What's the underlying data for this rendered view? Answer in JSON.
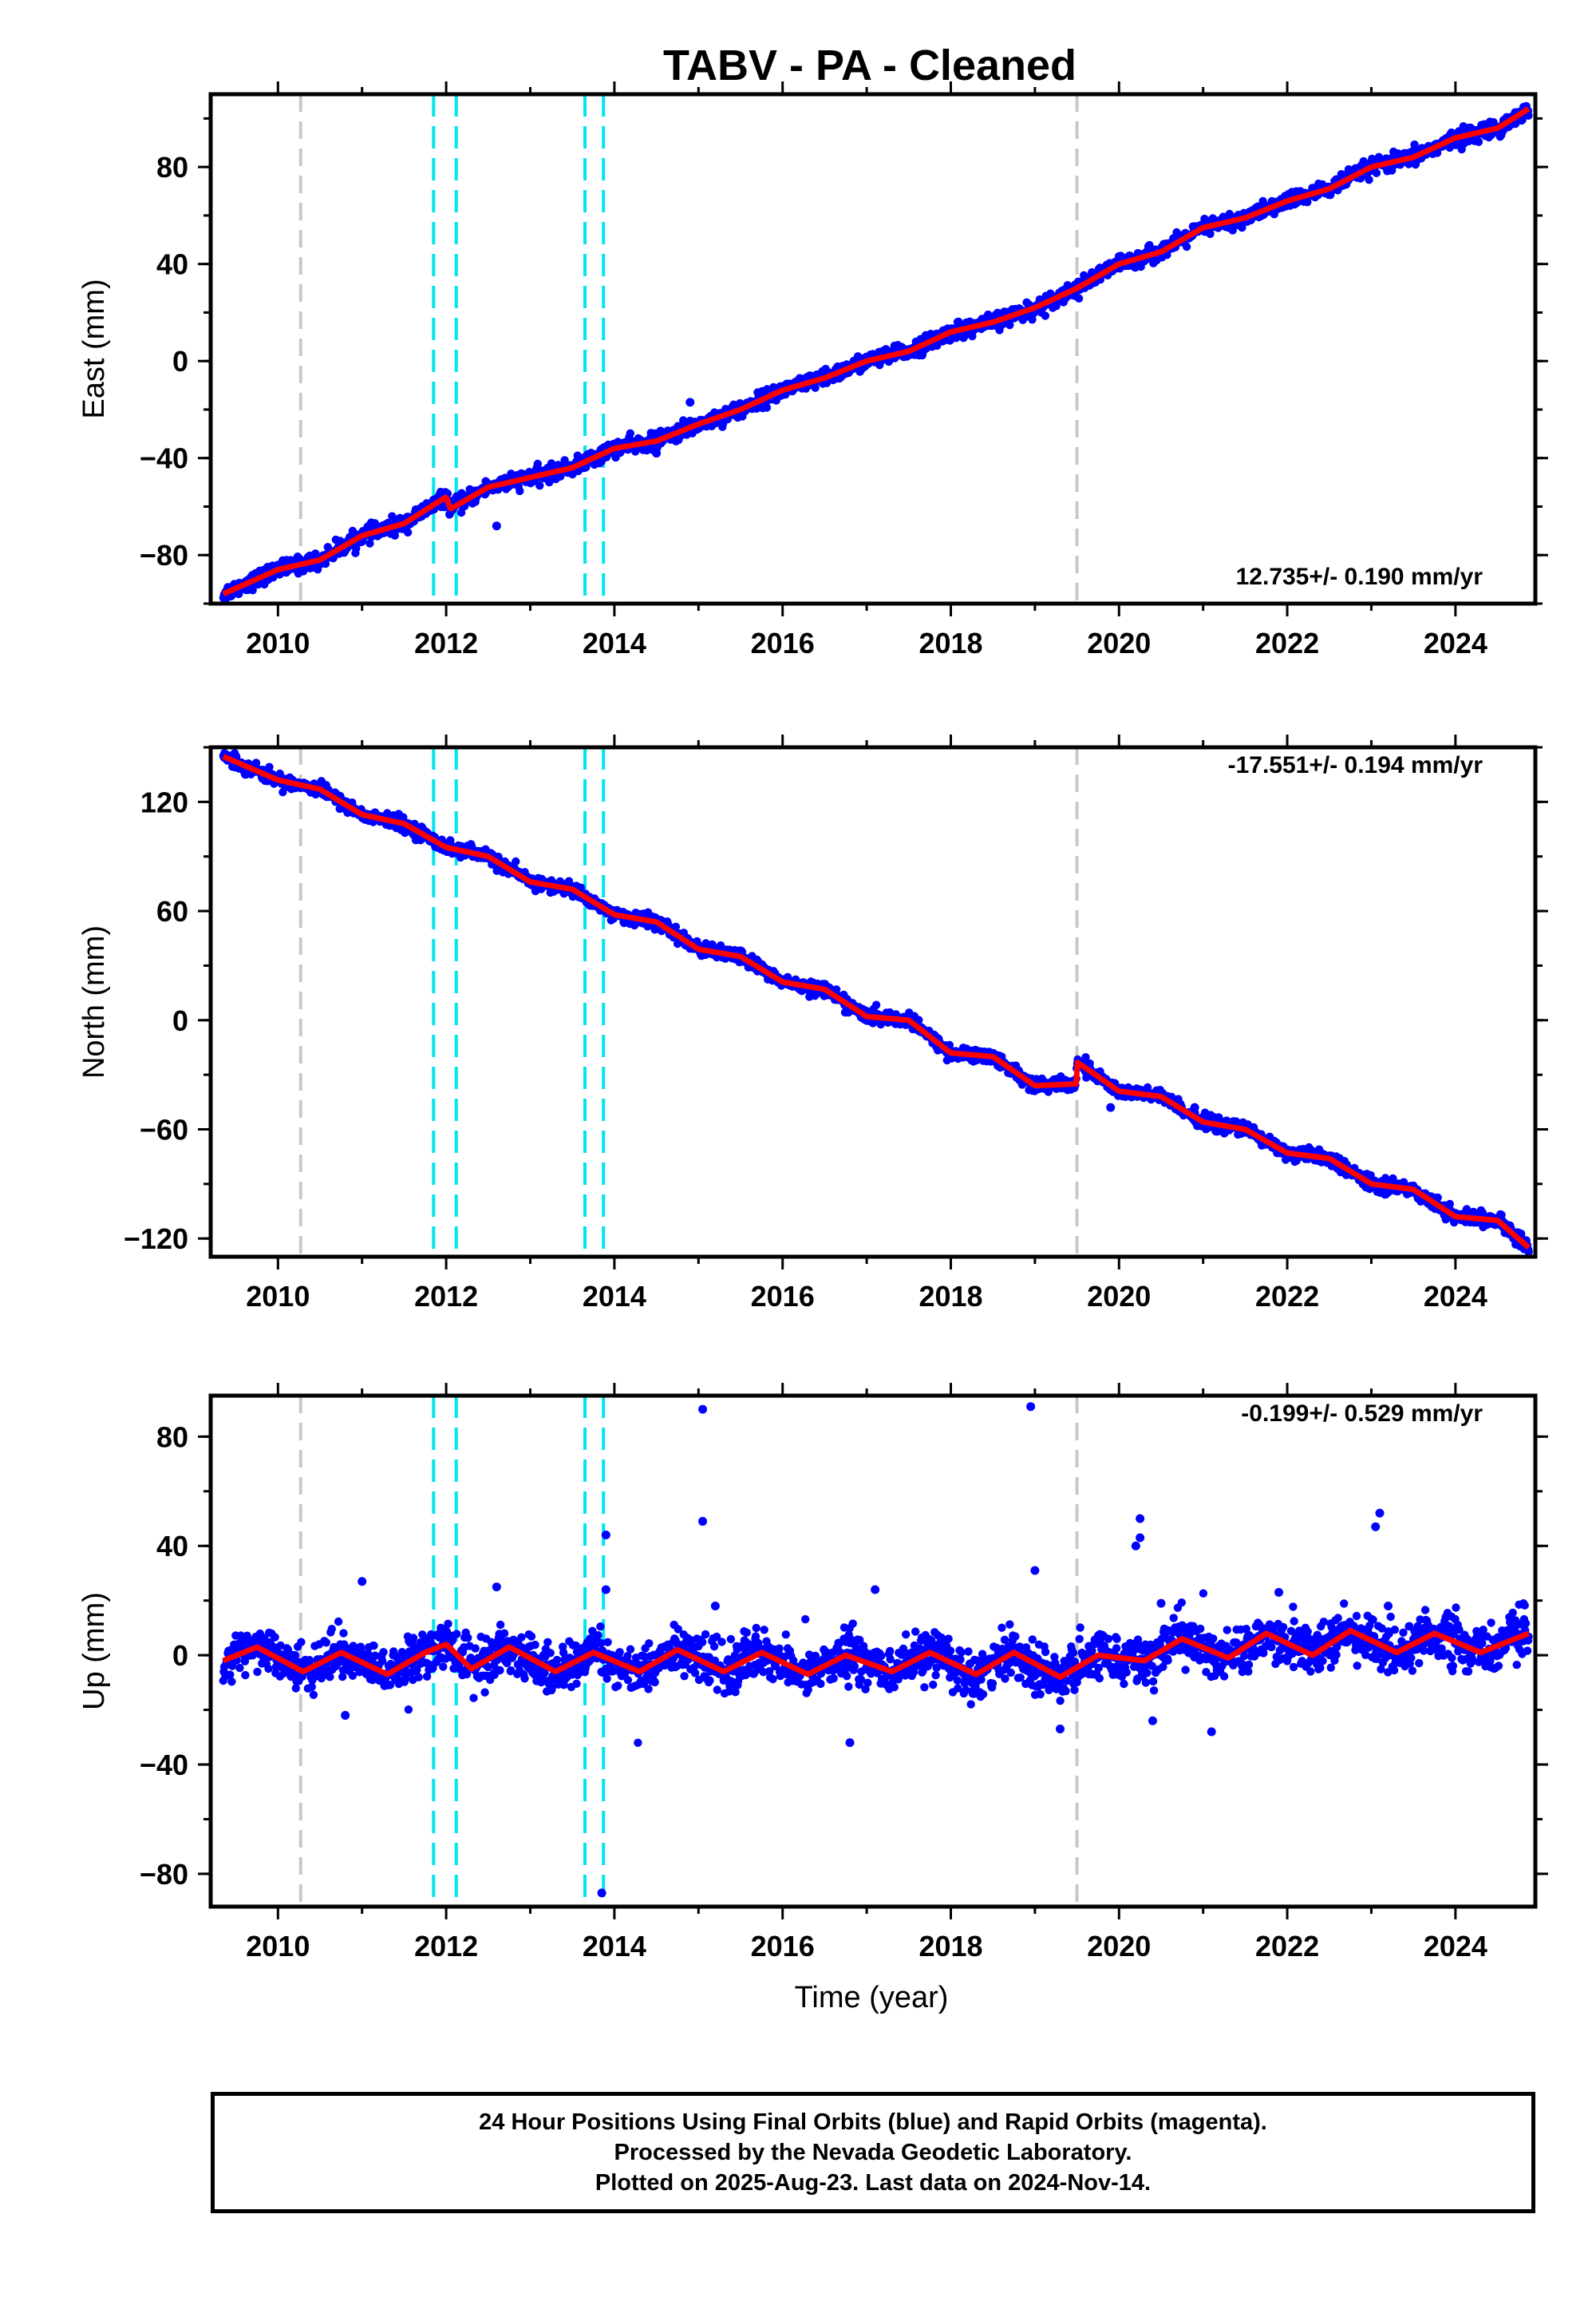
{
  "title": "TABV  - PA - Cleaned",
  "xlabel": "Time (year)",
  "colors": {
    "final_orbits": "#0000ff",
    "model": "#ff0000",
    "antenna_change": "#c8c8c8",
    "earthquake": "#00e5f0"
  },
  "chart_data": [
    {
      "type": "scatter",
      "panel": "East",
      "ylabel": "East (mm)",
      "rate_label": "12.735+/- 0.190 mm/yr",
      "xlim": [
        2009.2,
        2024.95
      ],
      "ylim": [
        -100,
        110
      ],
      "xticks": [
        "2010",
        "2012",
        "2014",
        "2016",
        "2018",
        "2020",
        "2022",
        "2024"
      ],
      "yticks": [
        "−80",
        "−40",
        "0",
        "40",
        "80"
      ],
      "ytick_values": [
        -80,
        -40,
        0,
        40,
        80
      ],
      "rate_mm_per_yr": 12.735,
      "start_value": -96,
      "end_value": 104,
      "steps": [
        {
          "x": 2012.05,
          "offset": -6
        },
        {
          "x": 2019.5,
          "offset": 4
        }
      ],
      "seasonal_amplitude": 2,
      "noise": 1.6,
      "model_series": {
        "name": "model",
        "x": [
          2009.35,
          2010.0,
          2010.5,
          2011.0,
          2011.5,
          2012.0,
          2012.05,
          2012.5,
          2013.0,
          2013.5,
          2014.0,
          2014.5,
          2015.0,
          2015.5,
          2016.0,
          2016.5,
          2017.0,
          2017.5,
          2018.0,
          2018.5,
          2019.0,
          2019.5,
          2020.0,
          2020.5,
          2021.0,
          2021.5,
          2022.0,
          2022.5,
          2023.0,
          2023.5,
          2024.0,
          2024.5,
          2024.87
        ],
        "y": [
          -96,
          -86,
          -82,
          -72,
          -67,
          -56,
          -61,
          -52,
          -48,
          -44,
          -36,
          -33,
          -26,
          -20,
          -12,
          -7,
          0,
          4,
          12,
          16,
          22,
          30,
          40,
          45,
          55,
          59,
          66,
          71,
          80,
          84,
          92,
          96,
          104
        ]
      },
      "outliers": [
        {
          "x": 2012.6,
          "y": -68
        },
        {
          "x": 2014.5,
          "y": -38
        },
        {
          "x": 2014.9,
          "y": -17
        }
      ]
    },
    {
      "type": "scatter",
      "panel": "North",
      "ylabel": "North (mm)",
      "rate_label": "-17.551+/- 0.194 mm/yr",
      "xlim": [
        2009.2,
        2024.95
      ],
      "ylim": [
        -130,
        150
      ],
      "xticks": [
        "2010",
        "2012",
        "2014",
        "2016",
        "2018",
        "2020",
        "2022",
        "2024"
      ],
      "yticks": [
        "−120",
        "−60",
        "0",
        "60",
        "120"
      ],
      "ytick_values": [
        -120,
        -60,
        0,
        60,
        120
      ],
      "rate_mm_per_yr": -17.551,
      "start_value": 145,
      "end_value": -125,
      "steps": [
        {
          "x": 2019.5,
          "offset": 12
        }
      ],
      "seasonal_amplitude": 3,
      "noise": 1.8,
      "model_series": {
        "name": "model",
        "x": [
          2009.35,
          2010.0,
          2010.5,
          2011.0,
          2011.5,
          2012.0,
          2012.5,
          2013.0,
          2013.5,
          2014.0,
          2014.5,
          2015.0,
          2015.5,
          2016.0,
          2016.5,
          2017.0,
          2017.5,
          2018.0,
          2018.5,
          2019.0,
          2019.49,
          2019.5,
          2020.0,
          2020.5,
          2021.0,
          2021.5,
          2022.0,
          2022.5,
          2023.0,
          2023.5,
          2024.0,
          2024.5,
          2024.87
        ],
        "y": [
          145,
          132,
          127,
          113,
          108,
          95,
          90,
          76,
          72,
          58,
          54,
          39,
          35,
          21,
          17,
          2,
          0,
          -18,
          -20,
          -36,
          -35,
          -23,
          -39,
          -42,
          -56,
          -60,
          -73,
          -76,
          -90,
          -93,
          -108,
          -110,
          -125
        ]
      },
      "outliers": [
        {
          "x": 2019.9,
          "y": -48
        },
        {
          "x": 2020.9,
          "y": -48
        }
      ]
    },
    {
      "type": "scatter",
      "panel": "Up",
      "ylabel": "Up (mm)",
      "rate_label": "-0.199+/- 0.529 mm/yr",
      "xlim": [
        2009.2,
        2024.95
      ],
      "ylim": [
        -92,
        95
      ],
      "xticks": [
        "2010",
        "2012",
        "2014",
        "2016",
        "2018",
        "2020",
        "2022",
        "2024"
      ],
      "yticks": [
        "−80",
        "−40",
        "0",
        "40",
        "80"
      ],
      "ytick_values": [
        -80,
        -40,
        0,
        40,
        80
      ],
      "rate_mm_per_yr": -0.199,
      "start_value": -3,
      "end_value": 8,
      "steps": [],
      "seasonal_amplitude": 5,
      "noise": 4.2,
      "model_series": {
        "name": "model",
        "x": [
          2009.35,
          2009.75,
          2010.3,
          2010.75,
          2011.3,
          2011.75,
          2012.0,
          2012.3,
          2012.75,
          2013.3,
          2013.75,
          2014.3,
          2014.75,
          2015.3,
          2015.75,
          2016.3,
          2016.75,
          2017.3,
          2017.75,
          2018.3,
          2018.75,
          2019.3,
          2019.75,
          2020.3,
          2020.75,
          2021.3,
          2021.75,
          2022.3,
          2022.75,
          2023.3,
          2023.75,
          2024.3,
          2024.87
        ],
        "y": [
          -2,
          3,
          -6,
          1,
          -7,
          1,
          4,
          -5,
          3,
          -6,
          1,
          -6,
          2,
          -6,
          1,
          -7,
          0,
          -6,
          1,
          -7,
          1,
          -8,
          0,
          -2,
          6,
          -1,
          8,
          0,
          9,
          1,
          8,
          1,
          8
        ]
      },
      "outliers": [
        {
          "x": 2015.05,
          "y": 90
        },
        {
          "x": 2018.95,
          "y": 91
        },
        {
          "x": 2013.9,
          "y": 44
        },
        {
          "x": 2015.05,
          "y": 49
        },
        {
          "x": 2023.1,
          "y": 52
        },
        {
          "x": 2023.05,
          "y": 47
        },
        {
          "x": 2020.25,
          "y": 50
        },
        {
          "x": 2020.25,
          "y": 43
        },
        {
          "x": 2020.2,
          "y": 40
        },
        {
          "x": 2019.0,
          "y": 31
        },
        {
          "x": 2011.0,
          "y": 27
        },
        {
          "x": 2012.6,
          "y": 25
        },
        {
          "x": 2013.9,
          "y": 24
        },
        {
          "x": 2017.1,
          "y": 24
        },
        {
          "x": 2021.9,
          "y": 23
        },
        {
          "x": 2020.5,
          "y": 19
        },
        {
          "x": 2015.2,
          "y": 18
        },
        {
          "x": 2023.2,
          "y": 18
        },
        {
          "x": 2021.1,
          "y": -28
        },
        {
          "x": 2016.8,
          "y": -32
        },
        {
          "x": 2013.85,
          "y": -87
        },
        {
          "x": 2019.3,
          "y": -27
        },
        {
          "x": 2010.8,
          "y": -22
        },
        {
          "x": 2020.4,
          "y": -24
        }
      ]
    }
  ],
  "event_lines": {
    "gray": [
      2010.27,
      2019.5
    ],
    "cyan": [
      2011.85,
      2012.12,
      2013.65,
      2013.87
    ]
  },
  "footer": {
    "line1": "24 Hour Positions Using Final Orbits (blue) and Rapid Orbits (magenta).",
    "line2": "Processed by the Nevada Geodetic Laboratory.",
    "line3": "Plotted on 2025-Aug-23. Last data on 2024-Nov-14."
  }
}
